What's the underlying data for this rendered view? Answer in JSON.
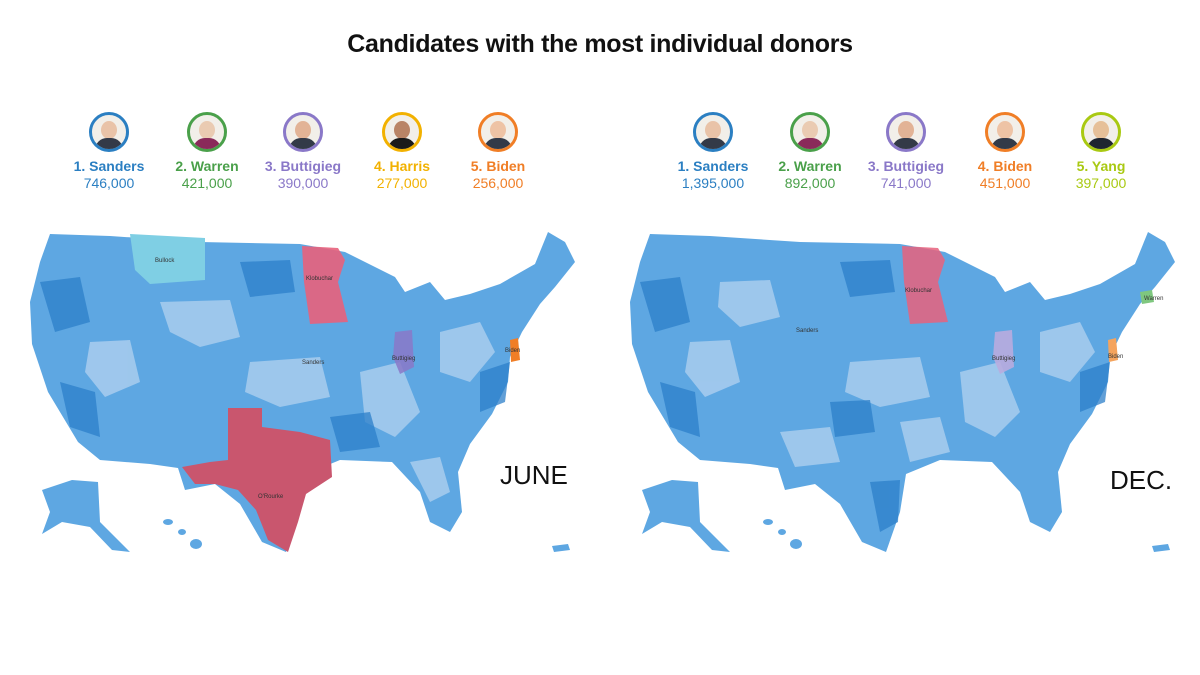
{
  "title": "Candidates with the most individual donors",
  "colors": {
    "sanders": "#3d8fd6",
    "sanders_light": "#a9cdee",
    "warren": "#4aa04a",
    "buttigieg": "#8a78c8",
    "harris": "#f2b100",
    "biden": "#f07e26",
    "yang": "#a9c912",
    "klobuchar": "#e8627c",
    "orourke": "#c9566e",
    "bullock": "#7fcfe4"
  },
  "panels": [
    {
      "month": "JUNE",
      "candidates": [
        {
          "name": "1. Sanders",
          "count": "746,000",
          "color": "#2b7fc2",
          "icon": "sanders-portrait-icon"
        },
        {
          "name": "2. Warren",
          "count": "421,000",
          "color": "#4aa04a",
          "icon": "warren-portrait-icon"
        },
        {
          "name": "3. Buttigieg",
          "count": "390,000",
          "color": "#8a78c8",
          "icon": "buttigieg-portrait-icon"
        },
        {
          "name": "4. Harris",
          "count": "277,000",
          "color": "#f2b100",
          "icon": "harris-portrait-icon"
        },
        {
          "name": "5. Biden",
          "count": "256,000",
          "color": "#f07e26",
          "icon": "biden-portrait-icon"
        }
      ],
      "map_labels": {
        "bullock": "Bullock",
        "klobuchar": "Klobuchar",
        "sanders": "Sanders",
        "buttigieg": "Buttigieg",
        "biden": "Biden",
        "orourke": "O'Rourke"
      }
    },
    {
      "month": "DEC.",
      "candidates": [
        {
          "name": "1. Sanders",
          "count": "1,395,000",
          "color": "#2b7fc2",
          "icon": "sanders-portrait-icon"
        },
        {
          "name": "2. Warren",
          "count": "892,000",
          "color": "#4aa04a",
          "icon": "warren-portrait-icon"
        },
        {
          "name": "3. Buttigieg",
          "count": "741,000",
          "color": "#8a78c8",
          "icon": "buttigieg-portrait-icon"
        },
        {
          "name": "4. Biden",
          "count": "451,000",
          "color": "#f07e26",
          "icon": "biden-portrait-icon"
        },
        {
          "name": "5. Yang",
          "count": "397,000",
          "color": "#a9c912",
          "icon": "yang-portrait-icon"
        }
      ],
      "map_labels": {
        "sanders": "Sanders",
        "klobuchar": "Klobuchar",
        "warren": "Warren",
        "buttigieg": "Buttigieg",
        "biden": "Biden"
      }
    }
  ]
}
